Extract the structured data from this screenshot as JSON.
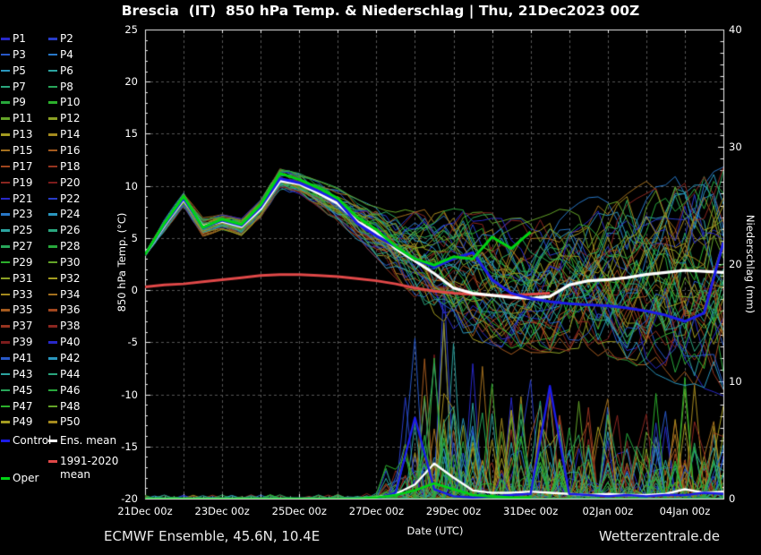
{
  "title": "Brescia  (IT)  850 hPa Temp. & Niederschlag | Thu, 21Dec2023 00Z",
  "footer": {
    "left": "ECMWF Ensemble, 45.6N, 10.4E",
    "right": "Wetterzentrale.de"
  },
  "colors": {
    "background": "#000000",
    "grid": "#575757",
    "axis": "#eeeeee",
    "text": "#ffffff"
  },
  "legend": {
    "members": [
      "P1",
      "P2",
      "P3",
      "P4",
      "P5",
      "P6",
      "P7",
      "P8",
      "P9",
      "P10",
      "P11",
      "P12",
      "P13",
      "P14",
      "P15",
      "P16",
      "P17",
      "P18",
      "P19",
      "P20",
      "P21",
      "P22",
      "P23",
      "P24",
      "P25",
      "P26",
      "P27",
      "P28",
      "P29",
      "P30",
      "P31",
      "P32",
      "P33",
      "P34",
      "P35",
      "P36",
      "P37",
      "P38",
      "P39",
      "P40",
      "P41",
      "P42",
      "P43",
      "P44",
      "P45",
      "P46",
      "P47",
      "P48",
      "P49",
      "P50"
    ],
    "member_colors": [
      "#2828c8",
      "#283cc8",
      "#2858c8",
      "#2878c8",
      "#2a96be",
      "#2ca4a0",
      "#2aa67e",
      "#28a65a",
      "#28a83c",
      "#2cb02c",
      "#64a428",
      "#8ca024",
      "#a49c20",
      "#a48a1e",
      "#a4701e",
      "#a45a1e",
      "#a0461e",
      "#963420",
      "#8a2620",
      "#7c1c1c",
      "#2828c8",
      "#283cc8",
      "#2878c8",
      "#2a96be",
      "#2ca4a0",
      "#2aa67e",
      "#28a65a",
      "#28a83c",
      "#2cb02c",
      "#64a428",
      "#8ca024",
      "#a49c20",
      "#a48a1e",
      "#a4701e",
      "#a45a1e",
      "#a0461e",
      "#963420",
      "#8a2620",
      "#7c1c1c",
      "#2828c8",
      "#2858c8",
      "#2a96be",
      "#2ca4a0",
      "#2aa67e",
      "#28a65a",
      "#28a83c",
      "#2cb02c",
      "#64a428",
      "#a49c20",
      "#a48a1e"
    ],
    "specials": [
      {
        "name": "control",
        "label": "Control",
        "color": "#1c1ce8"
      },
      {
        "name": "ens-mean",
        "label": "Ens. mean",
        "color": "#ffffff"
      },
      {
        "name": "climate-mean",
        "label": "1991-2020 mean",
        "color": "#e04848"
      },
      {
        "name": "oper",
        "label": "Oper",
        "color": "#00d414"
      }
    ]
  },
  "chart_data": {
    "type": "line",
    "station": "Brescia (IT)",
    "run": "Thu, 21Dec2023 00Z",
    "n_ensemble_members": 50,
    "x_step_hours": 12,
    "x_hours": [
      0,
      12,
      24,
      36,
      48,
      60,
      72,
      84,
      96,
      108,
      120,
      132,
      144,
      156,
      168,
      180,
      192,
      204,
      216,
      228,
      240,
      252,
      264,
      276,
      288,
      300,
      312,
      324,
      336,
      348,
      360
    ],
    "temp_axis": {
      "label": "850 hPa Temp. (°C)",
      "range": [
        -20,
        25
      ],
      "tick_values": [
        25,
        20,
        15,
        10,
        5,
        0,
        -5,
        -10,
        -15,
        -20
      ],
      "tick_labels": [
        "25",
        "20",
        "15",
        "10",
        "5",
        "0",
        "-5",
        "-10",
        "-15",
        "-20"
      ]
    },
    "precip_axis": {
      "label": "Niederschlag (mm)",
      "range": [
        0,
        40
      ],
      "tick_values": [
        0,
        10,
        20,
        30,
        40
      ],
      "tick_labels": [
        "0",
        "10",
        "20",
        "30",
        "40"
      ]
    },
    "x_axis": {
      "label": "Date (UTC)",
      "range_hours": [
        0,
        360
      ],
      "tick_hours": [
        0,
        48,
        96,
        144,
        192,
        240,
        288,
        336
      ],
      "tick_labels": [
        "21Dec 00z",
        "23Dec 00z",
        "25Dec 00z",
        "27Dec 00z",
        "29Dec 00z",
        "31Dec 00z",
        "02Jan 00z",
        "04Jan 00z"
      ],
      "grid_interval_hours": 24,
      "minor_tick_hours": 6
    },
    "series": {
      "ens_mean_temp": [
        3.4,
        6.2,
        8.7,
        6.1,
        6.6,
        6.1,
        7.8,
        10.5,
        10.2,
        9.3,
        8.3,
        6.6,
        5.5,
        4.0,
        2.8,
        1.6,
        0.2,
        -0.3,
        -0.5,
        -0.7,
        -0.8,
        -0.6,
        0.5,
        0.9,
        1.0,
        1.2,
        1.5,
        1.7,
        1.9,
        1.8,
        1.7
      ],
      "control_temp": [
        3.4,
        6.3,
        8.8,
        6.0,
        6.7,
        6.2,
        8.0,
        10.7,
        10.3,
        9.5,
        8.6,
        6.4,
        5.2,
        4.2,
        3.0,
        2.2,
        3.0,
        3.6,
        1.0,
        -0.3,
        -0.8,
        -1.1,
        -1.3,
        -1.4,
        -1.5,
        -1.7,
        -2.0,
        -2.4,
        -3.0,
        -2.2,
        4.6
      ],
      "oper_temp": [
        3.4,
        6.4,
        9.0,
        6.0,
        6.8,
        6.3,
        8.2,
        11.2,
        10.6,
        9.8,
        8.8,
        7.0,
        5.8,
        4.2,
        3.0,
        2.4,
        3.2,
        3.0,
        5.1,
        4.0,
        5.6
      ],
      "climate_temp_1991_2020": [
        0.3,
        0.5,
        0.6,
        0.8,
        1.0,
        1.2,
        1.4,
        1.5,
        1.5,
        1.4,
        1.3,
        1.1,
        0.9,
        0.6,
        0.2,
        -0.1,
        -0.3,
        -0.4,
        -0.5,
        -0.5,
        -0.4,
        -0.3
      ],
      "ens_mean_precip": [
        0,
        0,
        0,
        0,
        0,
        0,
        0,
        0,
        0,
        0,
        0,
        0,
        0.1,
        0.4,
        1.2,
        3.0,
        1.8,
        0.7,
        0.5,
        0.5,
        0.6,
        0.5,
        0.4,
        0.3,
        0.4,
        0.3,
        0.3,
        0.4,
        0.8,
        0.5,
        0.6
      ],
      "control_precip": [
        0,
        0,
        0,
        0,
        0,
        0,
        0,
        0,
        0,
        0,
        0,
        0,
        0,
        0.5,
        6.9,
        0.8,
        0.2,
        0.1,
        0.2,
        0.3,
        0.4,
        9.6,
        0.4,
        0.3,
        0.2,
        0.3,
        0.2,
        0.3,
        0.3,
        0.5,
        0.4
      ],
      "oper_precip": [
        0,
        0,
        0,
        0,
        0,
        0,
        0,
        0,
        0,
        0,
        0,
        0,
        0.1,
        0.3,
        0.7,
        1.3,
        0.8,
        0.3,
        0.2,
        0.1,
        0.1
      ],
      "member_temp_env_min": [
        3.3,
        5.6,
        8.0,
        5.2,
        5.9,
        5.3,
        7.0,
        9.6,
        9.2,
        8.0,
        6.6,
        5.0,
        3.2,
        1.2,
        -0.6,
        -2.2,
        -3.6,
        -4.4,
        -5.0,
        -5.4,
        -5.6,
        -5.6,
        -5.4,
        -5.6,
        -6.0,
        -6.4,
        -7.0,
        -7.6,
        -8.4,
        -9.0,
        -9.4
      ],
      "member_temp_env_max": [
        3.5,
        6.8,
        9.3,
        6.9,
        7.2,
        6.8,
        8.6,
        11.6,
        11.2,
        10.4,
        9.6,
        8.6,
        7.8,
        7.2,
        7.4,
        7.4,
        7.6,
        7.2,
        6.8,
        6.6,
        6.4,
        7.0,
        7.6,
        8.0,
        8.2,
        8.6,
        9.2,
        9.6,
        10.2,
        10.8,
        11.4
      ],
      "member_precip_env_max": [
        0,
        0,
        0,
        0,
        0,
        0,
        0,
        0,
        0.3,
        0.3,
        0.4,
        0.4,
        0.5,
        6,
        16,
        21,
        15,
        12,
        11,
        10,
        10,
        10,
        9,
        8,
        9,
        8,
        8,
        9,
        9,
        8,
        8
      ]
    }
  }
}
